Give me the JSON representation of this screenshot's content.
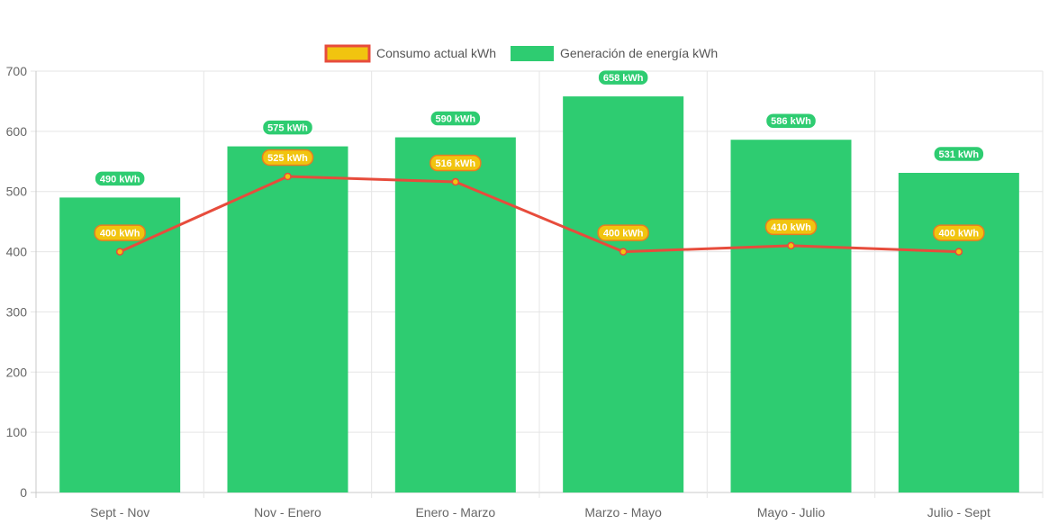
{
  "chart_data": {
    "type": "bar",
    "categories": [
      "Sept - Nov",
      "Nov - Enero",
      "Enero - Marzo",
      "Marzo - Mayo",
      "Mayo - Julio",
      "Julio - Sept"
    ],
    "series": [
      {
        "name": "Consumo actual kWh",
        "type": "line",
        "values": [
          400,
          525,
          516,
          400,
          410,
          400
        ],
        "labels": [
          "400 kWh",
          "525 kWh",
          "516 kWh",
          "400 kWh",
          "410 kWh",
          "400 kWh"
        ],
        "color": "#e74c3c",
        "fill": "#f1c40f"
      },
      {
        "name": "Generación de energía kWh",
        "type": "bar",
        "values": [
          490,
          575,
          590,
          658,
          586,
          531
        ],
        "labels": [
          "490 kWh",
          "575 kWh",
          "590 kWh",
          "658 kWh",
          "586 kWh",
          "531 kWh"
        ],
        "color": "#2ecc71"
      }
    ],
    "ylim": [
      0,
      700
    ],
    "yticks": [
      "0",
      "100",
      "200",
      "300",
      "400",
      "500",
      "600",
      "700"
    ],
    "grid": true,
    "legend_position": "top-center"
  }
}
